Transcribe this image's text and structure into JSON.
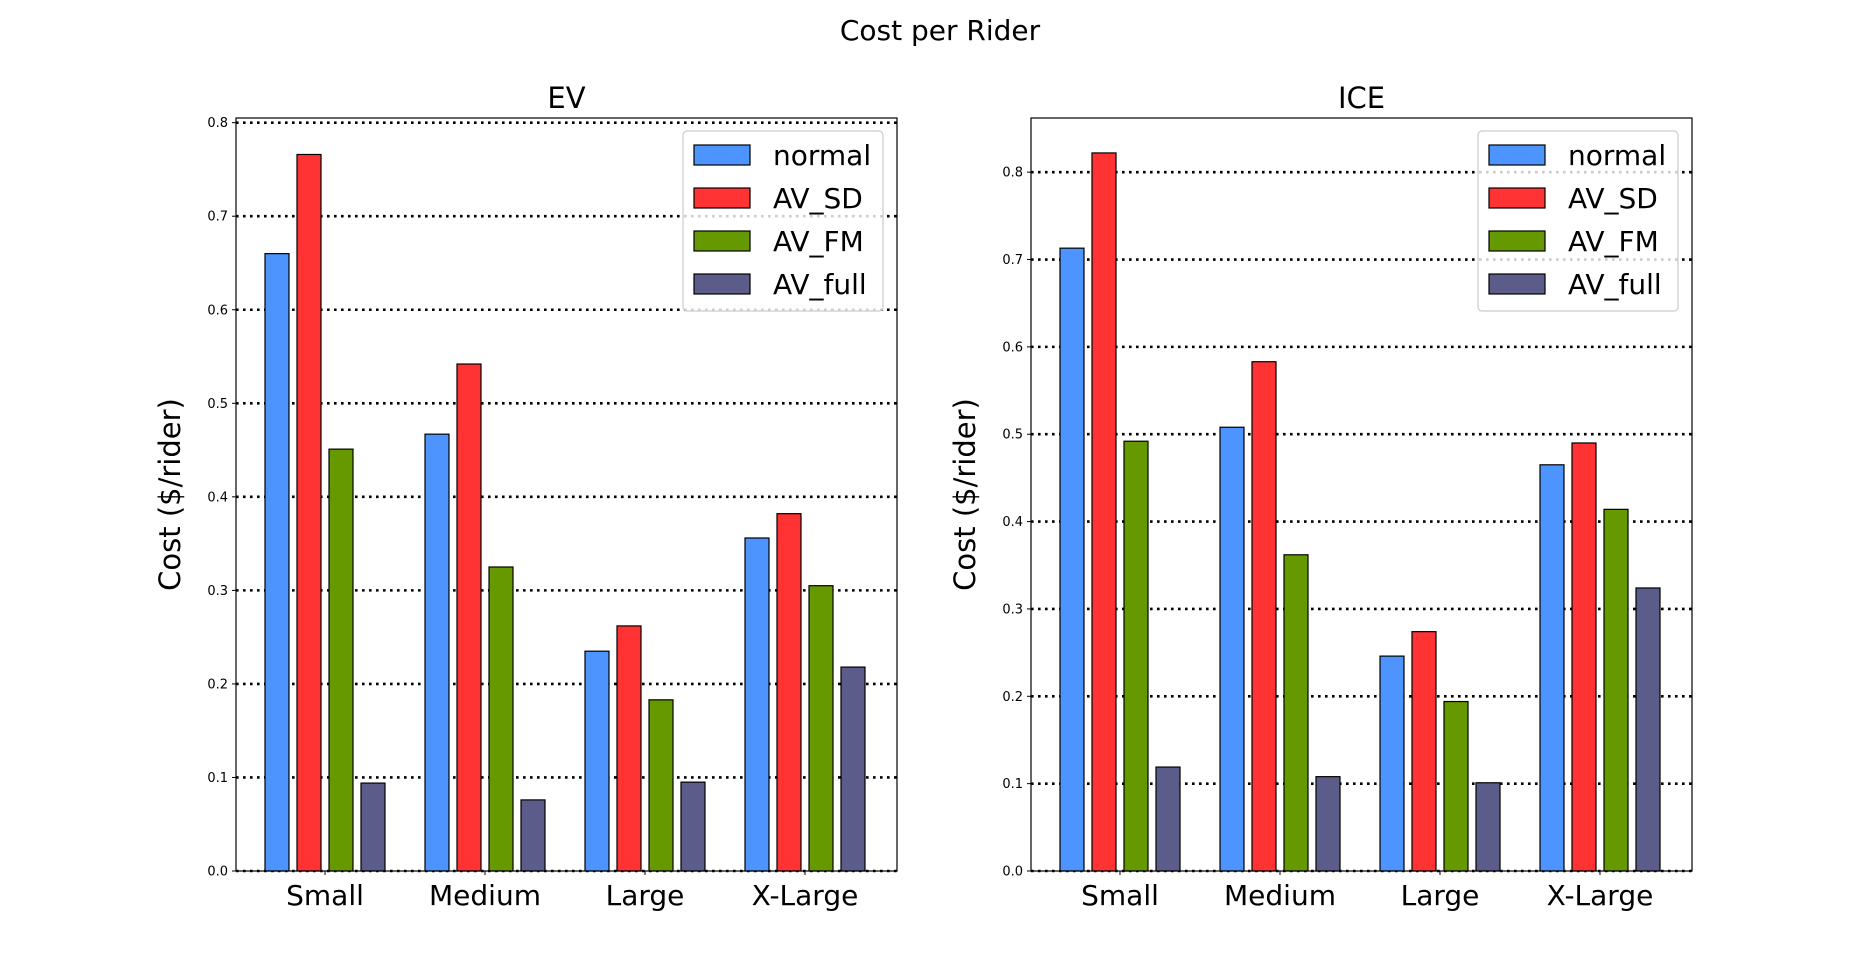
{
  "figure": {
    "title": "Cost per Rider"
  },
  "colors": {
    "normal": "#4d94ff",
    "AV_SD": "#ff3333",
    "AV_FM": "#669900",
    "AV_full": "#5c5c8a"
  },
  "chart_data": [
    {
      "type": "bar",
      "title": "EV",
      "xlabel": "",
      "ylabel": "Cost ($/rider)",
      "categories": [
        "Small",
        "Medium",
        "Large",
        "X-Large"
      ],
      "ylim": [
        0,
        0.805
      ],
      "yticks": [
        "0.0",
        "0.1",
        "0.2",
        "0.3",
        "0.4",
        "0.5",
        "0.6",
        "0.7",
        "0.8"
      ],
      "grid": true,
      "legend_position": "top-right",
      "series": [
        {
          "name": "normal",
          "values": [
            0.66,
            0.467,
            0.235,
            0.356
          ]
        },
        {
          "name": "AV_SD",
          "values": [
            0.766,
            0.542,
            0.262,
            0.382
          ]
        },
        {
          "name": "AV_FM",
          "values": [
            0.451,
            0.325,
            0.183,
            0.305
          ]
        },
        {
          "name": "AV_full",
          "values": [
            0.094,
            0.076,
            0.095,
            0.218
          ]
        }
      ]
    },
    {
      "type": "bar",
      "title": "ICE",
      "xlabel": "",
      "ylabel": "Cost ($/rider)",
      "categories": [
        "Small",
        "Medium",
        "Large",
        "X-Large"
      ],
      "ylim": [
        0,
        0.862
      ],
      "yticks": [
        "0.0",
        "0.1",
        "0.2",
        "0.3",
        "0.4",
        "0.5",
        "0.6",
        "0.7",
        "0.8"
      ],
      "grid": true,
      "legend_position": "top-right",
      "series": [
        {
          "name": "normal",
          "values": [
            0.713,
            0.508,
            0.246,
            0.465
          ]
        },
        {
          "name": "AV_SD",
          "values": [
            0.822,
            0.583,
            0.274,
            0.49
          ]
        },
        {
          "name": "AV_FM",
          "values": [
            0.492,
            0.362,
            0.194,
            0.414
          ]
        },
        {
          "name": "AV_full",
          "values": [
            0.119,
            0.108,
            0.101,
            0.324
          ]
        }
      ]
    }
  ]
}
